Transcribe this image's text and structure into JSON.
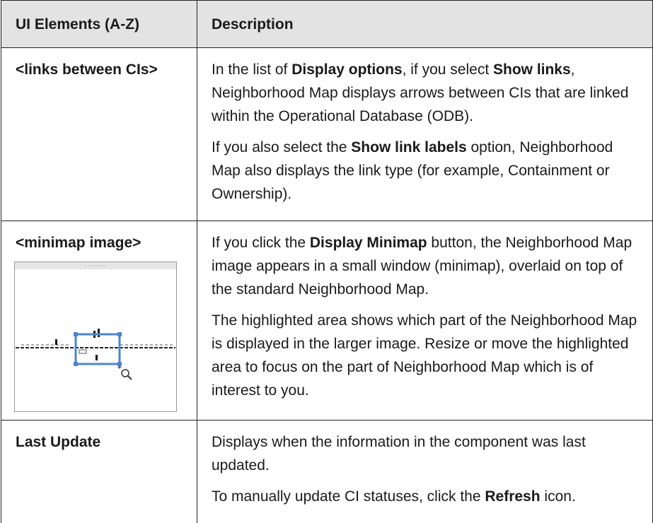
{
  "table": {
    "columns": [
      "UI Elements (A-Z)",
      "Description"
    ],
    "rows": [
      {
        "element": "<links between CIs>",
        "description": [
          [
            {
              "text": "In the list of "
            },
            {
              "text": "Display options",
              "bold": true
            },
            {
              "text": ", if you select "
            },
            {
              "text": "Show links",
              "bold": true
            },
            {
              "text": ", Neighborhood Map displays arrows between CIs that are linked within the Operational Database (ODB)."
            }
          ],
          [
            {
              "text": "If you also select the "
            },
            {
              "text": "Show link labels",
              "bold": true
            },
            {
              "text": " option, Neighborhood Map also displays the link type (for example, Containment or Ownership)."
            }
          ]
        ]
      },
      {
        "element": "<minimap image>",
        "description": [
          [
            {
              "text": "If you click the "
            },
            {
              "text": "Display Minimap",
              "bold": true
            },
            {
              "text": " button, the Neighborhood Map image appears in a small window (minimap), overlaid on top of the standard Neighborhood Map."
            }
          ],
          [
            {
              "text": "The highlighted area shows which part of the Neighborhood Map is displayed in the larger image. Resize or move the highlighted area to focus on the part of Neighborhood Map which is of interest to you."
            }
          ]
        ]
      },
      {
        "element": "Last Update",
        "description": [
          [
            {
              "text": "Displays when the information in the component was last updated."
            }
          ],
          [
            {
              "text": "To manually update CI statuses, click the "
            },
            {
              "text": "Refresh",
              "bold": true
            },
            {
              "text": " icon."
            }
          ]
        ]
      }
    ]
  }
}
